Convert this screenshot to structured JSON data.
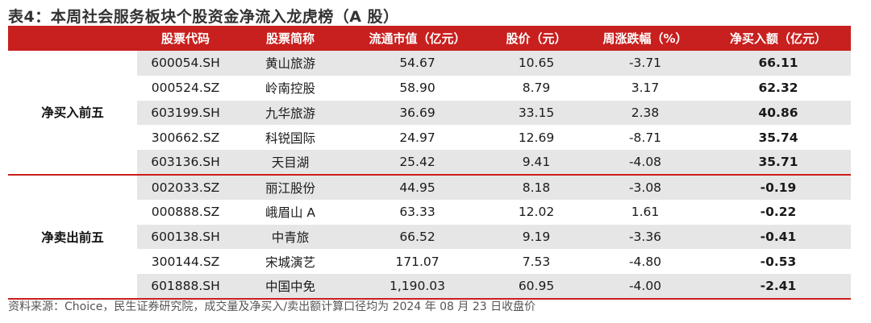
{
  "title": "表4：本周社会服务板块个股资金净流入龙虎榜（A 股）",
  "headers": [
    "",
    "股票代码",
    "股票简称",
    "流通市值（亿元）",
    "股价（元）",
    "周涨跌幅（%）",
    "净买入额（亿元）"
  ],
  "groups": [
    {
      "label": "净买入前五",
      "rows": [
        {
          "code": "600054.SH",
          "name": "黄山旅游",
          "mcap": "54.67",
          "price": "10.65",
          "chg": "-3.71",
          "net": "66.11"
        },
        {
          "code": "000524.SZ",
          "name": "岭南控股",
          "mcap": "58.90",
          "price": "8.79",
          "chg": "3.17",
          "net": "62.32"
        },
        {
          "code": "603199.SH",
          "name": "九华旅游",
          "mcap": "36.69",
          "price": "33.15",
          "chg": "2.38",
          "net": "40.86"
        },
        {
          "code": "300662.SZ",
          "name": "科锐国际",
          "mcap": "24.97",
          "price": "12.69",
          "chg": "-8.71",
          "net": "35.74"
        },
        {
          "code": "603136.SH",
          "name": "天目湖",
          "mcap": "25.42",
          "price": "9.41",
          "chg": "-4.08",
          "net": "35.71"
        }
      ]
    },
    {
      "label": "净卖出前五",
      "rows": [
        {
          "code": "002033.SZ",
          "name": "丽江股份",
          "mcap": "44.95",
          "price": "8.18",
          "chg": "-3.08",
          "net": "-0.19"
        },
        {
          "code": "000888.SZ",
          "name": "峨眉山 A",
          "mcap": "63.33",
          "price": "12.02",
          "chg": "1.61",
          "net": "-0.22"
        },
        {
          "code": "600138.SH",
          "name": "中青旅",
          "mcap": "66.52",
          "price": "9.19",
          "chg": "-3.36",
          "net": "-0.41"
        },
        {
          "code": "300144.SZ",
          "name": "宋城演艺",
          "mcap": "171.07",
          "price": "7.53",
          "chg": "-4.80",
          "net": "-0.53"
        },
        {
          "code": "601888.SH",
          "name": "中国中免",
          "mcap": "1,190.03",
          "price": "60.95",
          "chg": "-4.00",
          "net": "-2.41"
        }
      ]
    }
  ],
  "source": "资料来源：Choice，民生证券研究院，成交量及净买入/卖出额计算口径均为 2024 年 08 月 23 日收盘价",
  "colors": {
    "header_bg": "#c8201e",
    "header_text": "#ffffff",
    "row_shade": "#e6e6e6",
    "rule": "#c8201e"
  }
}
